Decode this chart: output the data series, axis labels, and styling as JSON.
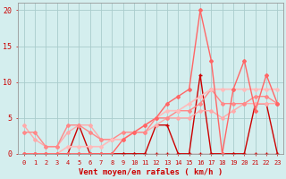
{
  "background_color": "#d4eeee",
  "grid_color": "#aacccc",
  "xlabel": "Vent moyen/en rafales ( km/h )",
  "xlim": [
    -0.5,
    23.5
  ],
  "ylim": [
    0,
    21
  ],
  "yticks": [
    0,
    5,
    10,
    15,
    20
  ],
  "xticks": [
    0,
    1,
    2,
    3,
    4,
    5,
    6,
    7,
    8,
    9,
    10,
    11,
    12,
    13,
    14,
    15,
    16,
    17,
    18,
    19,
    20,
    21,
    22,
    23
  ],
  "xtick_labels": [
    "0",
    "1",
    "2",
    "3",
    "4",
    "5",
    "6",
    "7",
    "8",
    "9",
    "10",
    "11",
    "12",
    "13",
    "14",
    "15",
    "16",
    "17",
    "18",
    "19",
    "20",
    "21",
    "22",
    "23"
  ],
  "series": [
    {
      "x": [
        0,
        1,
        2,
        3,
        4,
        5,
        6,
        7,
        8,
        9,
        10,
        11,
        12,
        13,
        14,
        15,
        16,
        17,
        18,
        19,
        20,
        21,
        22,
        23
      ],
      "y": [
        0,
        0,
        0,
        0,
        0,
        0,
        0,
        0,
        0,
        0,
        0,
        0,
        0,
        0,
        0,
        0,
        0,
        0,
        0,
        0,
        0,
        0,
        0,
        0
      ],
      "color": "#cc0000",
      "lw": 0.9,
      "marker": "+",
      "ms": 3.0
    },
    {
      "x": [
        0,
        1,
        2,
        3,
        4,
        5,
        6,
        7,
        8,
        9,
        10,
        11,
        12,
        13,
        14,
        15,
        16,
        17,
        18,
        19,
        20,
        21,
        22,
        23
      ],
      "y": [
        0,
        0,
        0,
        0,
        0,
        4,
        0,
        0,
        0,
        0,
        0,
        0,
        4,
        4,
        0,
        0,
        11,
        0,
        0,
        0,
        0,
        7,
        7,
        0
      ],
      "color": "#cc0000",
      "lw": 1.0,
      "marker": "+",
      "ms": 3.0
    },
    {
      "x": [
        0,
        1,
        2,
        3,
        4,
        5,
        6,
        7,
        8,
        9,
        10,
        11,
        12,
        13,
        14,
        15,
        16,
        17,
        18,
        19,
        20,
        21,
        22,
        23
      ],
      "y": [
        4,
        2,
        1,
        1,
        3,
        4,
        4,
        2,
        2,
        2,
        3,
        3,
        4,
        5,
        5,
        5,
        6,
        6,
        5,
        6,
        7,
        7,
        7,
        7
      ],
      "color": "#ffaaaa",
      "lw": 1.0,
      "marker": "D",
      "ms": 2.0
    },
    {
      "x": [
        0,
        1,
        2,
        3,
        4,
        5,
        6,
        7,
        8,
        9,
        10,
        11,
        12,
        13,
        14,
        15,
        16,
        17,
        18,
        19,
        20,
        21,
        22,
        23
      ],
      "y": [
        3,
        3,
        1,
        1,
        4,
        4,
        3,
        2,
        2,
        3,
        3,
        3,
        5,
        5,
        6,
        6,
        7,
        9,
        7,
        7,
        7,
        8,
        8,
        7
      ],
      "color": "#ff8888",
      "lw": 1.0,
      "marker": "D",
      "ms": 2.0
    },
    {
      "x": [
        0,
        1,
        2,
        3,
        4,
        5,
        6,
        7,
        8,
        9,
        10,
        11,
        12,
        13,
        14,
        15,
        16,
        17,
        18,
        19,
        20,
        21,
        22,
        23
      ],
      "y": [
        0,
        0,
        0,
        0,
        1,
        1,
        1,
        1,
        2,
        2,
        3,
        4,
        5,
        6,
        6,
        7,
        8,
        9,
        9,
        9,
        9,
        9,
        9,
        9
      ],
      "color": "#ffbbbb",
      "lw": 1.2,
      "marker": "D",
      "ms": 2.0
    },
    {
      "x": [
        0,
        1,
        2,
        3,
        4,
        5,
        6,
        7,
        8,
        9,
        10,
        11,
        12,
        13,
        14,
        15,
        16,
        17,
        18,
        19,
        20,
        21,
        22,
        23
      ],
      "y": [
        0,
        0,
        0,
        0,
        0,
        0,
        0,
        0,
        0,
        2,
        3,
        4,
        5,
        7,
        8,
        9,
        20,
        13,
        0,
        9,
        13,
        6,
        11,
        7
      ],
      "color": "#ff6666",
      "lw": 1.0,
      "marker": "D",
      "ms": 2.0
    }
  ]
}
